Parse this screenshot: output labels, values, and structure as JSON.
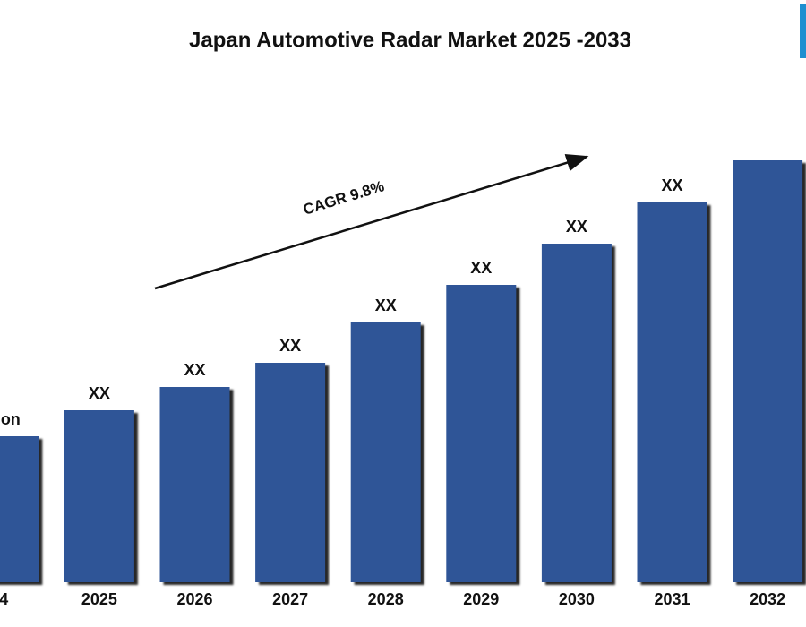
{
  "chart_data": {
    "type": "bar",
    "title": "Japan Automotive Radar Market 2025  -2033",
    "annotation": "CAGR 9.8%",
    "categories": [
      "4",
      "2025",
      "2026",
      "2027",
      "2028",
      "2029",
      "2030",
      "2031",
      "2032"
    ],
    "values": [
      163,
      192,
      218,
      245,
      290,
      332,
      378,
      424,
      471
    ],
    "value_labels": [
      "llion",
      "XX",
      "XX",
      "XX",
      "XX",
      "XX",
      "XX",
      "XX",
      null
    ],
    "color": "#2f5597",
    "ylim": [
      0,
      490
    ]
  }
}
